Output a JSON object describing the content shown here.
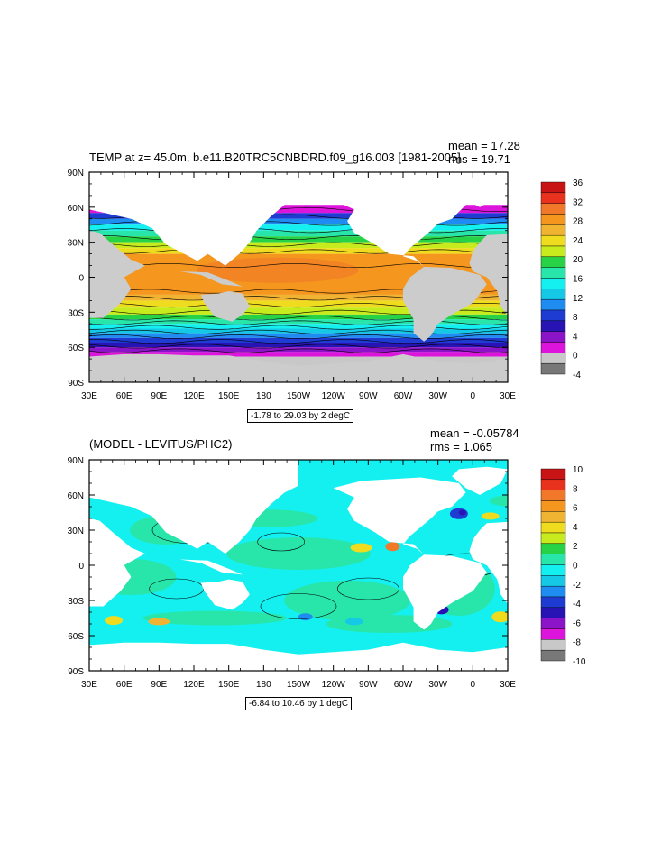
{
  "panels": [
    {
      "title": "TEMP at z=  45.0m, b.e11.B20TRC5CNBDRD.f09_g16.003 [1981-2005]",
      "mean_label": "mean = 17.28",
      "rms_label": "rms = 19.71",
      "range_label": "-1.78 to 29.03 by 2 degC",
      "colorbar_labels": [
        "36",
        "32",
        "28",
        "24",
        "20",
        "16",
        "12",
        "8",
        "4",
        "0",
        "-4"
      ],
      "colorbar_colors": [
        "#c81414",
        "#e8321e",
        "#f07828",
        "#f5961e",
        "#f0b432",
        "#f0dc1e",
        "#c8eb1e",
        "#28d246",
        "#28e6aa",
        "#14f0f0",
        "#14c8e6",
        "#1e8cf0",
        "#1e3cd2",
        "#2814b4",
        "#8c14c8",
        "#dc14dc",
        "#c8c8c8",
        "#787878"
      ],
      "lat_labels": [
        "90N",
        "60N",
        "30N",
        "0",
        "30S",
        "60S",
        "90S"
      ],
      "lon_labels": [
        "30E",
        "60E",
        "90E",
        "120E",
        "150E",
        "180",
        "150W",
        "120W",
        "90W",
        "60W",
        "30W",
        "0",
        "30E"
      ]
    },
    {
      "title": "(MODEL - LEVITUS/PHC2)",
      "mean_label": "mean = -0.05784",
      "rms_label": "rms = 1.065",
      "range_label": "-6.84 to 10.46 by 1 degC",
      "colorbar_labels": [
        "10",
        "8",
        "6",
        "4",
        "2",
        "0",
        "-2",
        "-4",
        "-6",
        "-8",
        "-10"
      ],
      "colorbar_colors": [
        "#c81414",
        "#e8321e",
        "#f07828",
        "#f5961e",
        "#f0b432",
        "#f0dc1e",
        "#c8eb1e",
        "#28d246",
        "#28e6aa",
        "#14f0f0",
        "#14c8e6",
        "#1e8cf0",
        "#1e3cd2",
        "#2814b4",
        "#8c14c8",
        "#dc14dc",
        "#c8c8c8",
        "#787878"
      ],
      "lat_labels": [
        "90N",
        "60N",
        "30N",
        "0",
        "30S",
        "60S",
        "90S"
      ],
      "lon_labels": [
        "30E",
        "60E",
        "90E",
        "120E",
        "150E",
        "180",
        "150W",
        "120W",
        "90W",
        "60W",
        "30W",
        "0",
        "30E"
      ]
    }
  ]
}
